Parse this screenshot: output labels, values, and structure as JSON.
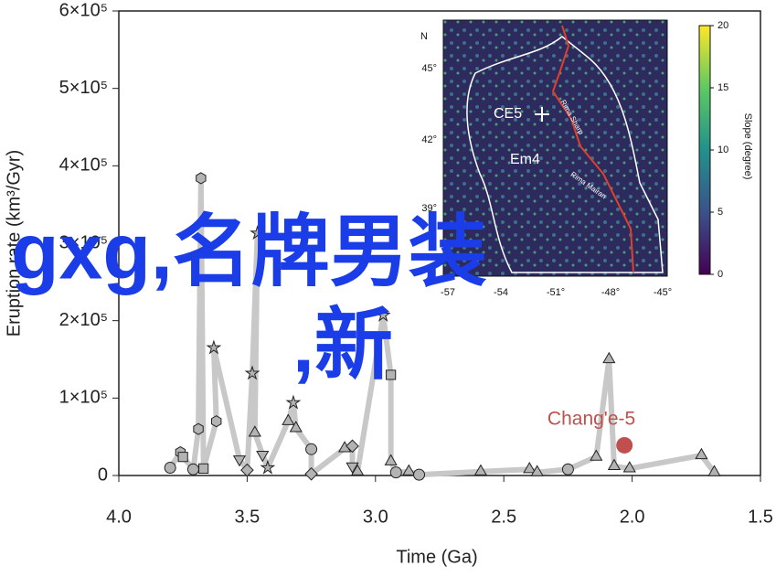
{
  "chart_data": {
    "type": "scatter",
    "xlabel": "Time (Ga)",
    "ylabel": "Eruption rate (km³/Gyr)",
    "xlim": [
      4,
      1.5
    ],
    "xticks": [
      {
        "value": 4,
        "label": "4.0"
      },
      3.5,
      {
        "value": 3,
        "label": "3.0"
      },
      2.5,
      {
        "value": 2,
        "label": "2.0"
      },
      1.5
    ],
    "ylim": [
      0,
      600000
    ],
    "yticks": [
      0,
      {
        "value": 100000,
        "label": "1×10⁵"
      },
      {
        "value": 200000,
        "label": "2×10⁵"
      },
      {
        "value": 300000,
        "label": "3×10⁵"
      },
      {
        "value": 400000,
        "label": "4×10⁵"
      },
      {
        "value": 500000,
        "label": "5×10⁵"
      },
      {
        "value": 600000,
        "label": "6×10⁵"
      }
    ],
    "series": [
      {
        "color": "#b3b3b3",
        "line_color": "#c8c8c8",
        "x": [
          3.8,
          3.76,
          3.75,
          3.71,
          3.69,
          3.68,
          3.67,
          3.62,
          3.63,
          3.53,
          3.5,
          3.48,
          3.46,
          3.47,
          3.44,
          3.42,
          3.34,
          3.32,
          3.31,
          3.25,
          3.25,
          3.12,
          3.09,
          3.09,
          3.07,
          2.97,
          2.94,
          2.94,
          2.92,
          2.87,
          2.83,
          2.59,
          2.4,
          2.37,
          2.25,
          2.14,
          2.09,
          2.07,
          2.01,
          1.73,
          1.68
        ],
        "values": [
          10000,
          30000,
          24000,
          8000,
          60000,
          384000,
          9000,
          70000,
          165000,
          21000,
          7000,
          132000,
          313000,
          55000,
          27000,
          10000,
          70000,
          94000,
          61000,
          34000,
          2000,
          35000,
          38000,
          12000,
          5000,
          207000,
          130000,
          18000,
          4000,
          5000,
          1000,
          5000,
          8000,
          4000,
          8000,
          24000,
          150000,
          12000,
          9000,
          26000,
          4000
        ],
        "markers": [
          "circle",
          "hexagon",
          "square",
          "circle",
          "hexagon",
          "hexagon",
          "square",
          "hexagon",
          "star",
          "down",
          "diamond",
          "star",
          "star",
          "triangle",
          "down",
          "star",
          "triangle",
          "star",
          "triangle",
          "circle",
          "diamond",
          "triangle",
          "diamond",
          "down",
          "triangle",
          "star",
          "square",
          "triangle",
          "circle",
          "triangle",
          "circle",
          "triangle",
          "triangle",
          "triangle",
          "circle",
          "triangle",
          "triangle",
          "triangle",
          "triangle",
          "triangle",
          "triangle"
        ]
      },
      {
        "name": "Chang'e-5",
        "color": "#c0504d",
        "x": [
          2.03
        ],
        "values": [
          39000
        ],
        "markers": [
          "circle"
        ]
      }
    ]
  },
  "inset": {
    "north": "N",
    "lat_labels": [
      "45°",
      "42°",
      "39°"
    ],
    "lon_labels": [
      "-57",
      "-54",
      "-51°",
      "-48°",
      "-45°"
    ],
    "sites": [
      "CE5",
      "Em4"
    ],
    "rilles": [
      "Rima Sharp",
      "Rima Mairan"
    ],
    "colorbar_ticks": [
      20,
      15,
      10,
      5,
      0
    ],
    "colorbar_label": "Slope (degree)"
  },
  "watermark": [
    "gxg,名牌男装",
    ",新"
  ]
}
